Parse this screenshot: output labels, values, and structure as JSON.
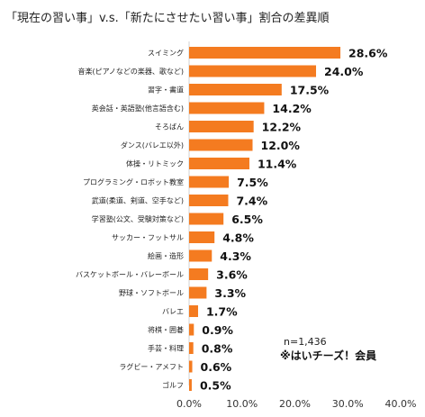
{
  "chart_data": {
    "type": "bar",
    "orientation": "horizontal",
    "title": "「現在の習い事」v.s.「新たにさせたい習い事」割合の差異順",
    "categories": [
      "スイミング",
      "音楽(ピアノなどの楽器、歌など)",
      "習字・書道",
      "英会話・英語塾(他言語含む)",
      "そろばん",
      "ダンス(バレエ以外)",
      "体操・リトミック",
      "プログラミング・ロボット教室",
      "武道(柔道、剣道、空手など)",
      "学習塾(公文、受験対策など)",
      "サッカー・フットサル",
      "絵画・造形",
      "バスケットボール・バレーボール",
      "野球・ソフトボール",
      "バレエ",
      "将棋・囲碁",
      "手芸・料理",
      "ラグビー・アメフト",
      "ゴルフ"
    ],
    "values": [
      28.6,
      24.0,
      17.5,
      14.2,
      12.2,
      12.0,
      11.4,
      7.5,
      7.4,
      6.5,
      4.8,
      4.3,
      3.6,
      3.3,
      1.7,
      0.9,
      0.8,
      0.6,
      0.5
    ],
    "value_labels": [
      "28.6%",
      "24.0%",
      "17.5%",
      "14.2%",
      "12.2%",
      "12.0%",
      "11.4%",
      "7.5%",
      "7.4%",
      "6.5%",
      "4.8%",
      "4.3%",
      "3.6%",
      "3.3%",
      "1.7%",
      "0.9%",
      "0.8%",
      "0.6%",
      "0.5%"
    ],
    "xlim": [
      0,
      40
    ],
    "xticks": [
      0,
      10,
      20,
      30,
      40
    ],
    "xtick_labels": [
      "0.0%",
      "10.0%",
      "20.0%",
      "30.0%",
      "40.0%"
    ],
    "grid": false,
    "bar_color": "#f47b20"
  },
  "annotations": {
    "sample_size": "n=1,436",
    "source": "※はいチーズ！会員"
  }
}
